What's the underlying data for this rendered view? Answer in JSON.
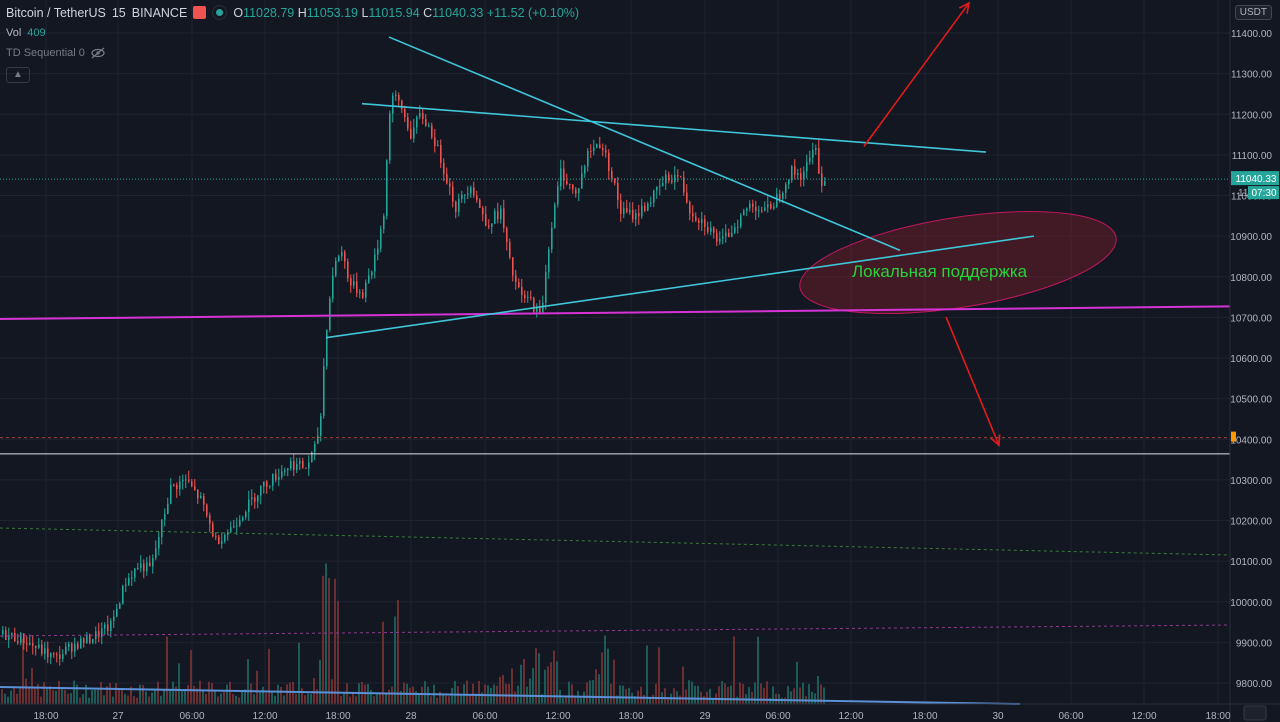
{
  "header": {
    "symbol": "Bitcoin / TetherUS",
    "interval": "15",
    "exchange": "BINANCE",
    "open_label": "O",
    "open": "11028.79",
    "high_label": "H",
    "high": "11053.19",
    "low_label": "L",
    "low": "11015.94",
    "close_label": "C",
    "close": "11040.33",
    "change": "+11.52 (+0.10%)"
  },
  "indicators": {
    "vol_label": "Vol",
    "vol_value": "409",
    "td_label": "TD Sequential 0"
  },
  "currency_badge": "USDT",
  "price_label": {
    "price": "11040.33",
    "countdown": "07:30",
    "partial": "11"
  },
  "annotation": "Локальная поддержка",
  "colors": {
    "up": "#26a69a",
    "down": "#ef5350",
    "trend": "#3fc6d9",
    "support": "#d633d6",
    "arrow": "#e31b1b"
  },
  "chart_data": {
    "type": "candlestick",
    "ylim": [
      9760,
      11470
    ],
    "y_ticks": [
      9800,
      9900,
      10000,
      10100,
      10200,
      10300,
      10400,
      10500,
      10600,
      10700,
      10800,
      10900,
      11000,
      11100,
      11200,
      11300,
      11400
    ],
    "x_ticks": [
      "18:00",
      "27",
      "06:00",
      "12:00",
      "18:00",
      "28",
      "06:00",
      "12:00",
      "18:00",
      "29",
      "06:00",
      "12:00",
      "18:00",
      "30",
      "06:00",
      "12:00",
      "18:00"
    ],
    "keypoints": [
      [
        0,
        9920
      ],
      [
        20,
        9910
      ],
      [
        40,
        9880
      ],
      [
        55,
        9860
      ],
      [
        70,
        9890
      ],
      [
        90,
        9910
      ],
      [
        110,
        9940
      ],
      [
        125,
        10050
      ],
      [
        138,
        10090
      ],
      [
        150,
        10080
      ],
      [
        160,
        10180
      ],
      [
        170,
        10280
      ],
      [
        185,
        10300
      ],
      [
        200,
        10250
      ],
      [
        215,
        10150
      ],
      [
        230,
        10180
      ],
      [
        245,
        10230
      ],
      [
        260,
        10280
      ],
      [
        275,
        10310
      ],
      [
        290,
        10340
      ],
      [
        305,
        10330
      ],
      [
        315,
        10380
      ],
      [
        320,
        10460
      ],
      [
        325,
        10660
      ],
      [
        332,
        10810
      ],
      [
        340,
        10870
      ],
      [
        350,
        10780
      ],
      [
        362,
        10760
      ],
      [
        375,
        10850
      ],
      [
        383,
        10960
      ],
      [
        390,
        11250
      ],
      [
        400,
        11220
      ],
      [
        410,
        11150
      ],
      [
        420,
        11200
      ],
      [
        430,
        11160
      ],
      [
        440,
        11090
      ],
      [
        455,
        10970
      ],
      [
        470,
        11030
      ],
      [
        485,
        10930
      ],
      [
        500,
        10960
      ],
      [
        510,
        10820
      ],
      [
        520,
        10750
      ],
      [
        530,
        10740
      ],
      [
        540,
        10700
      ],
      [
        548,
        10880
      ],
      [
        560,
        11060
      ],
      [
        575,
        11000
      ],
      [
        588,
        11110
      ],
      [
        600,
        11130
      ],
      [
        610,
        11060
      ],
      [
        620,
        10960
      ],
      [
        635,
        10950
      ],
      [
        650,
        10990
      ],
      [
        665,
        11040
      ],
      [
        678,
        11050
      ],
      [
        690,
        10960
      ],
      [
        705,
        10930
      ],
      [
        720,
        10880
      ],
      [
        735,
        10930
      ],
      [
        750,
        10980
      ],
      [
        765,
        10960
      ],
      [
        778,
        11000
      ],
      [
        790,
        11060
      ],
      [
        800,
        11050
      ],
      [
        810,
        11090
      ],
      [
        815,
        11130
      ],
      [
        820,
        11020
      ],
      [
        825,
        11040
      ]
    ],
    "drawings": {
      "trendline_upper_desc": [
        [
          389,
          11390
        ],
        [
          900,
          10865
        ]
      ],
      "trendline_upper_flat": [
        [
          362,
          11226
        ],
        [
          986,
          11107
        ]
      ],
      "trendline_lower_support": [
        [
          326,
          10650
        ],
        [
          1034,
          10900
        ]
      ],
      "horizontal_support": [
        [
          0,
          10696
        ],
        [
          1230,
          10727
        ]
      ],
      "ellipse_zone": {
        "cx": 958,
        "cy": 10835,
        "rx": 160,
        "ry": 45
      },
      "arrow_up": [
        [
          864,
          11121
        ],
        [
          969,
          11474
        ]
      ],
      "arrow_down": [
        [
          946,
          10701
        ],
        [
          999,
          10385
        ]
      ],
      "white_hline": 10364,
      "red_dashed_hline": 10404
    }
  }
}
